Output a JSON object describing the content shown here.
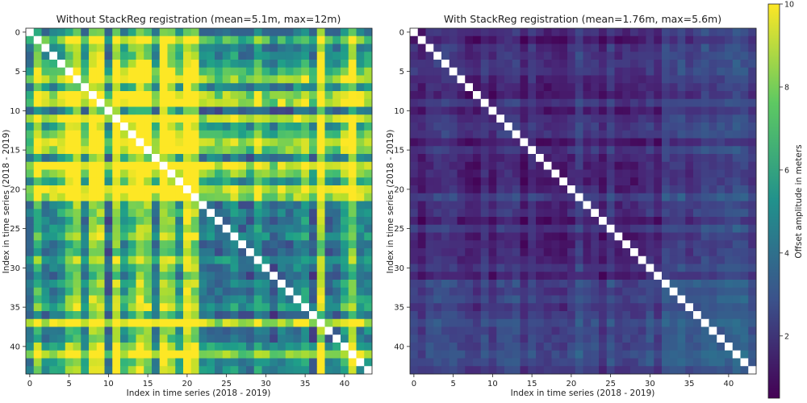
{
  "colormap": "viridis",
  "colorbar": {
    "label": "Offset amplitude in meters",
    "ticks": [
      2,
      4,
      6,
      8,
      10
    ],
    "range": [
      0.5,
      10
    ]
  },
  "chart_data": [
    {
      "type": "heatmap",
      "title": "Without StackReg registration (mean=5.1m, max=12m)",
      "xlabel": "Index in time series (2018 - 2019)",
      "ylabel": "Index in time series (2018 - 2019)",
      "n": 44,
      "xticks": [
        0,
        5,
        10,
        15,
        20,
        25,
        30,
        35,
        40
      ],
      "yticks": [
        0,
        5,
        10,
        15,
        20,
        25,
        30,
        35,
        40
      ],
      "mean": 5.1,
      "max": 12,
      "diagonal": "blank",
      "high_offset_indices": [
        1,
        5,
        6,
        8,
        9,
        11,
        13,
        14,
        15,
        17,
        18,
        20,
        21,
        37,
        41
      ]
    },
    {
      "type": "heatmap",
      "title": "With StackReg registration (mean=1.76m, max=5.6m)",
      "xlabel": "Index in time series (2018 - 2019)",
      "ylabel": "Index in time series (2018 - 2019)",
      "n": 44,
      "xticks": [
        0,
        5,
        10,
        15,
        20,
        25,
        30,
        35,
        40
      ],
      "yticks": [
        0,
        5,
        10,
        15,
        20,
        25,
        30,
        35,
        40
      ],
      "mean": 1.76,
      "max": 5.6,
      "diagonal": "blank",
      "elevated_block": [
        32,
        43
      ]
    }
  ]
}
